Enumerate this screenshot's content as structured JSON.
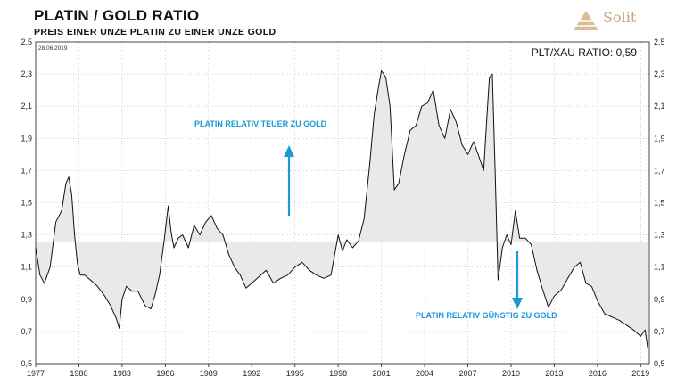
{
  "header": {
    "title": "PLATIN / GOLD RATIO",
    "subtitle": "PREIS EINER UNZE PLATIN ZU EINER UNZE GOLD"
  },
  "logo": {
    "text": "Solit"
  },
  "colors": {
    "line": "#111111",
    "shade": "#e9e9e9",
    "annotation": "#1a9ad6",
    "grid": "#bbbbbb"
  },
  "chart_data": {
    "type": "line",
    "title": "PLATIN / GOLD RATIO",
    "subtitle": "PREIS EINER UNZE PLATIN ZU EINER UNZE GOLD",
    "date_label": "28.06.2019",
    "ratio_label": "PLT/XAU RATIO: 0,59",
    "reference_level": 1.26,
    "xlim": [
      1977,
      2019.6
    ],
    "ylim": [
      0.5,
      2.5
    ],
    "grid": true,
    "x_ticks": [
      "1977",
      "1980",
      "1983",
      "1986",
      "1989",
      "1992",
      "1995",
      "1998",
      "2001",
      "2004",
      "2007",
      "2010",
      "2013",
      "2016",
      "2019"
    ],
    "y_ticks": [
      "0,5",
      "0,7",
      "0,9",
      "1,1",
      "1,3",
      "1,5",
      "1,7",
      "1,9",
      "2,1",
      "2,3",
      "2,5"
    ],
    "annotations": {
      "expensive": "PLATIN RELATIV TEUER ZU GOLD",
      "cheap": "PLATIN RELATIV GÜNSTIG ZU GOLD"
    },
    "series": [
      {
        "x": [
          1977.0,
          1977.3,
          1977.6,
          1978.0,
          1978.4,
          1978.8,
          1979.1,
          1979.3,
          1979.5,
          1979.7,
          1979.9,
          1980.1,
          1980.4,
          1980.8,
          1981.3,
          1981.8,
          1982.2,
          1982.6,
          1982.8,
          1983.0,
          1983.3,
          1983.7,
          1984.1,
          1984.6,
          1985.0,
          1985.3,
          1985.6,
          1985.9,
          1986.2,
          1986.4,
          1986.6,
          1986.9,
          1987.2,
          1987.6,
          1988.0,
          1988.4,
          1988.8,
          1989.2,
          1989.6,
          1990.0,
          1990.4,
          1990.8,
          1991.2,
          1991.6,
          1992.0,
          1992.5,
          1993.0,
          1993.5,
          1994.0,
          1994.5,
          1995.0,
          1995.5,
          1996.0,
          1996.5,
          1997.0,
          1997.5,
          1998.0,
          1998.3,
          1998.6,
          1999.0,
          1999.4,
          1999.8,
          2000.2,
          2000.5,
          2000.8,
          2001.0,
          2001.3,
          2001.6,
          2001.9,
          2002.2,
          2002.6,
          2003.0,
          2003.4,
          2003.8,
          2004.2,
          2004.6,
          2005.0,
          2005.4,
          2005.8,
          2006.2,
          2006.6,
          2007.0,
          2007.4,
          2007.8,
          2008.1,
          2008.3,
          2008.5,
          2008.7,
          2008.9,
          2009.1,
          2009.4,
          2009.7,
          2010.0,
          2010.3,
          2010.6,
          2011.0,
          2011.4,
          2011.8,
          2012.2,
          2012.6,
          2013.0,
          2013.5,
          2014.0,
          2014.4,
          2014.8,
          2015.2,
          2015.6,
          2016.0,
          2016.5,
          2017.0,
          2017.5,
          2018.0,
          2018.5,
          2019.0,
          2019.3,
          2019.5
        ],
        "y": [
          1.22,
          1.05,
          1.0,
          1.1,
          1.38,
          1.45,
          1.62,
          1.66,
          1.55,
          1.3,
          1.12,
          1.05,
          1.05,
          1.02,
          0.98,
          0.92,
          0.86,
          0.78,
          0.72,
          0.9,
          0.98,
          0.95,
          0.95,
          0.86,
          0.84,
          0.93,
          1.05,
          1.25,
          1.48,
          1.32,
          1.22,
          1.28,
          1.3,
          1.22,
          1.36,
          1.3,
          1.38,
          1.42,
          1.34,
          1.3,
          1.18,
          1.1,
          1.05,
          0.97,
          1.0,
          1.04,
          1.08,
          1.0,
          1.03,
          1.05,
          1.1,
          1.13,
          1.08,
          1.05,
          1.03,
          1.05,
          1.3,
          1.2,
          1.27,
          1.22,
          1.26,
          1.4,
          1.75,
          2.05,
          2.22,
          2.32,
          2.28,
          2.1,
          1.58,
          1.62,
          1.8,
          1.95,
          1.98,
          2.1,
          2.12,
          2.2,
          1.98,
          1.9,
          2.08,
          2.0,
          1.86,
          1.8,
          1.88,
          1.78,
          1.7,
          2.0,
          2.28,
          2.3,
          1.68,
          1.02,
          1.22,
          1.3,
          1.24,
          1.45,
          1.28,
          1.28,
          1.24,
          1.08,
          0.96,
          0.85,
          0.92,
          0.96,
          1.04,
          1.1,
          1.13,
          1.0,
          0.98,
          0.89,
          0.81,
          0.79,
          0.77,
          0.74,
          0.71,
          0.67,
          0.71,
          0.59
        ]
      }
    ]
  }
}
